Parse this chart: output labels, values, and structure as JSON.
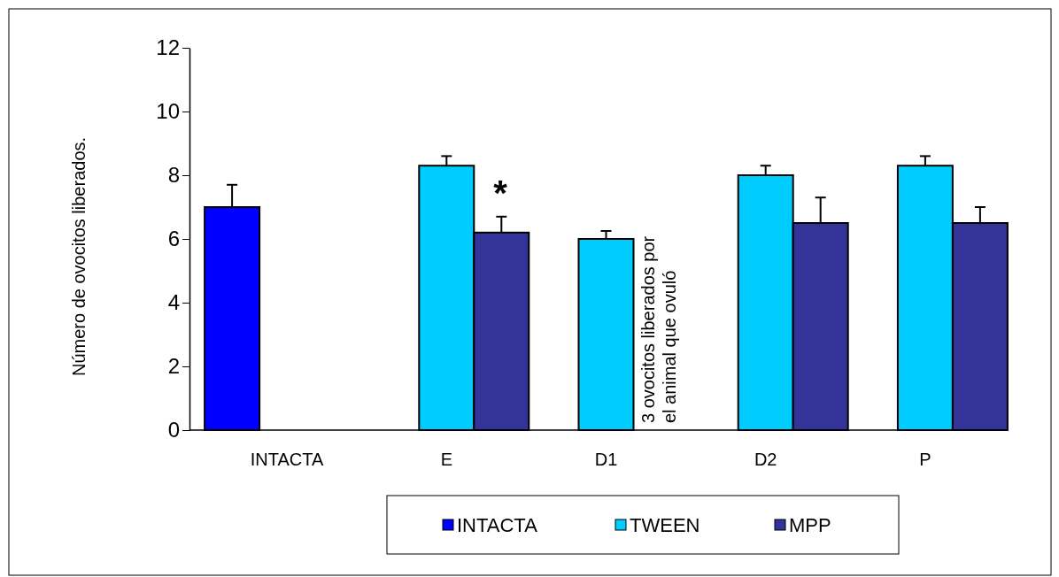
{
  "chart_data": {
    "type": "bar",
    "ylabel": "Número de ovocitos liberados.",
    "categories": [
      "INTACTA",
      "E",
      "D1",
      "D2",
      "P"
    ],
    "series": [
      {
        "name": "INTACTA",
        "color": "#0000ff",
        "values": [
          7,
          null,
          null,
          null,
          null
        ],
        "errors": [
          [
            7,
            7.7
          ],
          null,
          null,
          null,
          null
        ]
      },
      {
        "name": "TWEEN",
        "color": "#00ccff",
        "values": [
          null,
          8.3,
          6,
          8,
          8.3
        ],
        "errors": [
          null,
          [
            8.3,
            8.6
          ],
          [
            6,
            6.25
          ],
          [
            8,
            8.3
          ],
          [
            8.3,
            8.6
          ]
        ]
      },
      {
        "name": "MPP",
        "color": "#333399",
        "values": [
          null,
          6.2,
          null,
          6.5,
          6.5
        ],
        "errors": [
          null,
          [
            6.2,
            6.7
          ],
          null,
          [
            6.5,
            7.3
          ],
          [
            6.5,
            7
          ]
        ]
      }
    ],
    "ylim": [
      0,
      12
    ],
    "yticks": [
      0,
      2,
      4,
      6,
      8,
      10,
      12
    ],
    "grid": false,
    "legend": "bottom",
    "annotations": [
      "*",
      {
        "text": "3 ovocitos liberados  por\nel animal que ovuló",
        "x": "D1",
        "y": 0
      }
    ]
  }
}
